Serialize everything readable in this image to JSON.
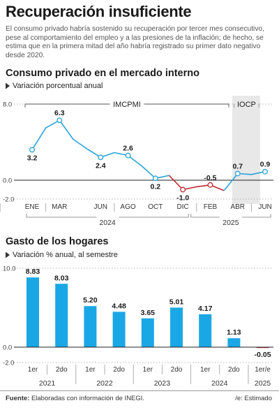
{
  "header": {
    "title": "Recuperación insuficiente",
    "subtitle": "El consumo privado habría sostenido su recuperación por tercer mes consecutivo, pese al comportamiento del empleo y a las presiones de la inflación; de hecho, se estima que en la primera mitad del año habría registrado su primer dato negativo desde 2020."
  },
  "chart1": {
    "title": "Consumo privado en el mercado interno",
    "subtitle": "Variación porcentual anual"
  },
  "chart2": {
    "title": "Gasto de los hogares",
    "subtitle": "Variación % anual, al semestre"
  },
  "footer": {
    "source_label": "Fuente:",
    "source_text": " Elaboradas con información de INEGI.",
    "note": "/e: Estimado"
  },
  "chart_data": [
    {
      "type": "line",
      "title": "Consumo privado en el mercado interno",
      "ylabel": "Variación porcentual anual",
      "ylim": [
        -2.0,
        8.0
      ],
      "y_ticks": [
        8.0,
        0.0,
        -2.0
      ],
      "x_tick_labels": [
        "ENE",
        "MAR",
        "JUN",
        "AGO",
        "OCT",
        "DIC",
        "FEB",
        "ABR",
        "JUN"
      ],
      "year_labels": [
        "2024",
        "2025"
      ],
      "brackets": [
        "IMCPMI",
        "IOCP"
      ],
      "colors": {
        "line": "#29a3d8",
        "negative": "#c0282d",
        "highlight_band": "#e8e8e8"
      },
      "series": [
        {
          "points": [
            {
              "x": "2024-01",
              "y": 3.2,
              "label": "3.2"
            },
            {
              "x": "2024-02",
              "y": 5.5
            },
            {
              "x": "2024-03",
              "y": 6.3,
              "label": "6.3"
            },
            {
              "x": "2024-04",
              "y": 4.3
            },
            {
              "x": "2024-05",
              "y": 3.3
            },
            {
              "x": "2024-06",
              "y": 2.4,
              "label": "2.4"
            },
            {
              "x": "2024-07",
              "y": 2.9
            },
            {
              "x": "2024-08",
              "y": 2.6,
              "label": "2.6"
            },
            {
              "x": "2024-09",
              "y": 1.5
            },
            {
              "x": "2024-10",
              "y": 0.2,
              "label": "0.2"
            },
            {
              "x": "2024-11",
              "y": 0.5
            },
            {
              "x": "2024-12",
              "y": -1.0,
              "label": "-1.0"
            },
            {
              "x": "2025-01",
              "y": -0.7
            },
            {
              "x": "2025-02",
              "y": -0.5,
              "label": "-0.5"
            },
            {
              "x": "2025-03",
              "y": -1.1
            },
            {
              "x": "2025-04",
              "y": 0.7,
              "label": "0.7"
            },
            {
              "x": "2025-05",
              "y": 0.6
            },
            {
              "x": "2025-06",
              "y": 0.9,
              "label": "0.9"
            }
          ]
        }
      ]
    },
    {
      "type": "bar",
      "title": "Gasto de los hogares",
      "ylabel": "Variación % anual, al semestre",
      "ylim": [
        -2.0,
        10.0
      ],
      "y_ticks": [
        10.0,
        0.0,
        -2.0
      ],
      "categories": [
        "1er",
        "2do",
        "1er",
        "2do",
        "1er",
        "2do",
        "1er",
        "2do",
        "1er/e"
      ],
      "years": [
        "2021",
        "2022",
        "2023",
        "2024",
        "2025"
      ],
      "values": [
        8.83,
        8.03,
        5.2,
        4.48,
        3.65,
        5.01,
        4.17,
        1.13,
        -0.05
      ],
      "value_labels": [
        "8.83",
        "8.03",
        "5.20",
        "4.48",
        "3.65",
        "5.01",
        "4.17",
        "1.13",
        "-0.05"
      ],
      "colors": {
        "bar": "#1aa7e6",
        "negative": "#c0282d"
      }
    }
  ]
}
